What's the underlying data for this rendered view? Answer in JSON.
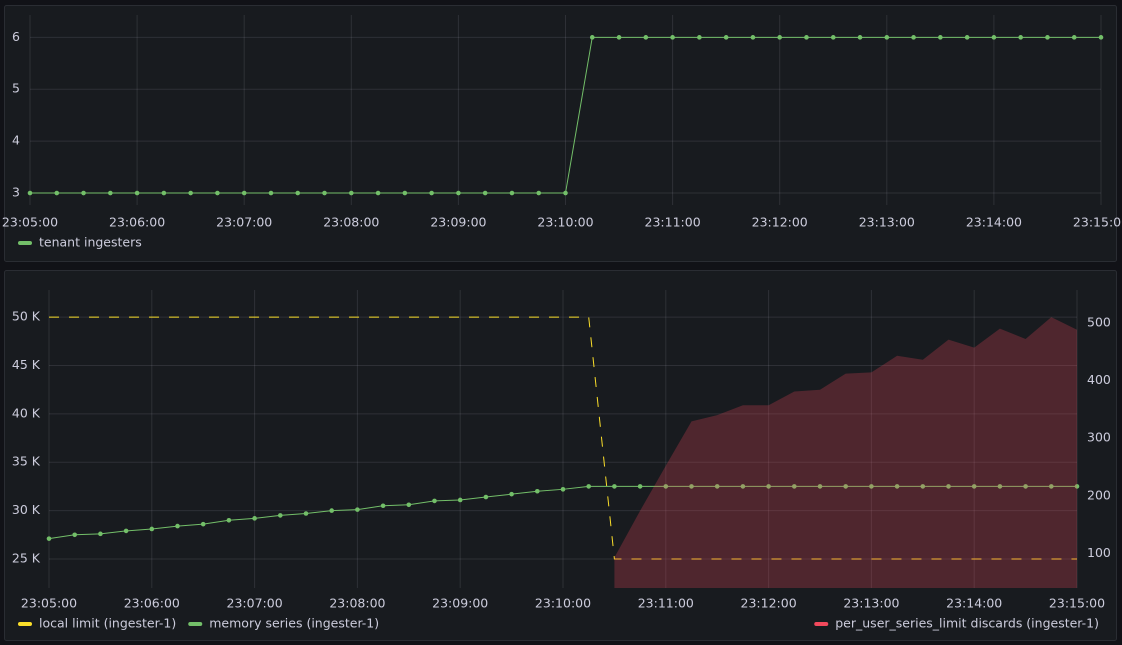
{
  "chart_data": [
    {
      "type": "line",
      "x": [
        "23:05:00",
        "23:05:15",
        "23:05:30",
        "23:05:45",
        "23:06:00",
        "23:06:15",
        "23:06:30",
        "23:06:45",
        "23:07:00",
        "23:07:15",
        "23:07:30",
        "23:07:45",
        "23:08:00",
        "23:08:15",
        "23:08:30",
        "23:08:45",
        "23:09:00",
        "23:09:15",
        "23:09:30",
        "23:09:45",
        "23:10:00",
        "23:10:15",
        "23:10:30",
        "23:10:45",
        "23:11:00",
        "23:11:15",
        "23:11:30",
        "23:11:45",
        "23:12:00",
        "23:12:15",
        "23:12:30",
        "23:12:45",
        "23:13:00",
        "23:13:15",
        "23:13:30",
        "23:13:45",
        "23:14:00",
        "23:14:15",
        "23:14:30",
        "23:14:45",
        "23:15:00"
      ],
      "series": [
        {
          "name": "tenant ingesters",
          "color": "#73bf69",
          "points": true,
          "values": [
            3,
            3,
            3,
            3,
            3,
            3,
            3,
            3,
            3,
            3,
            3,
            3,
            3,
            3,
            3,
            3,
            3,
            3,
            3,
            3,
            3,
            6,
            6,
            6,
            6,
            6,
            6,
            6,
            6,
            6,
            6,
            6,
            6,
            6,
            6,
            6,
            6,
            6,
            6,
            6,
            6
          ]
        }
      ],
      "xlim": [
        "23:05:00",
        "23:15:00"
      ],
      "xticks": [
        "23:05:00",
        "23:06:00",
        "23:07:00",
        "23:08:00",
        "23:09:00",
        "23:10:00",
        "23:11:00",
        "23:12:00",
        "23:13:00",
        "23:14:00",
        "23:15:00"
      ],
      "ylim": [
        2.77,
        6.43
      ],
      "yticks": [
        3,
        4,
        5,
        6
      ],
      "grid": true,
      "legend": "bottom"
    },
    {
      "type": "line",
      "x": [
        "23:05:00",
        "23:05:15",
        "23:05:30",
        "23:05:45",
        "23:06:00",
        "23:06:15",
        "23:06:30",
        "23:06:45",
        "23:07:00",
        "23:07:15",
        "23:07:30",
        "23:07:45",
        "23:08:00",
        "23:08:15",
        "23:08:30",
        "23:08:45",
        "23:09:00",
        "23:09:15",
        "23:09:30",
        "23:09:45",
        "23:10:00",
        "23:10:15",
        "23:10:30",
        "23:10:45",
        "23:11:00",
        "23:11:15",
        "23:11:30",
        "23:11:45",
        "23:12:00",
        "23:12:15",
        "23:12:30",
        "23:12:45",
        "23:13:00",
        "23:13:15",
        "23:13:30",
        "23:13:45",
        "23:14:00",
        "23:14:15",
        "23:14:30",
        "23:14:45",
        "23:15:00"
      ],
      "series": [
        {
          "name": "local limit (ingester-1)",
          "color": "#fade2a",
          "dashed": true,
          "values": [
            50000,
            50000,
            50000,
            50000,
            50000,
            50000,
            50000,
            50000,
            50000,
            50000,
            50000,
            50000,
            50000,
            50000,
            50000,
            50000,
            50000,
            50000,
            50000,
            50000,
            50000,
            50000,
            25000,
            25000,
            25000,
            25000,
            25000,
            25000,
            25000,
            25000,
            25000,
            25000,
            25000,
            25000,
            25000,
            25000,
            25000,
            25000,
            25000,
            25000,
            25000
          ]
        },
        {
          "name": "memory series (ingester-1)",
          "color": "#73bf69",
          "points": true,
          "values": [
            27100,
            27500,
            27600,
            27900,
            28100,
            28400,
            28600,
            29000,
            29200,
            29500,
            29700,
            30000,
            30100,
            30500,
            30600,
            31000,
            31100,
            31400,
            31700,
            32000,
            32200,
            32500,
            32500,
            32500,
            32500,
            32500,
            32500,
            32500,
            32500,
            32500,
            32500,
            32500,
            32500,
            32500,
            32500,
            32500,
            32500,
            32500,
            32500,
            32500,
            32500
          ]
        },
        {
          "name": "per_user_series_limit discards (ingester-1)",
          "color": "#f2495c",
          "axis": "y2",
          "fill": true,
          "values": [
            null,
            null,
            null,
            null,
            null,
            null,
            null,
            null,
            null,
            null,
            null,
            null,
            null,
            null,
            null,
            null,
            null,
            null,
            null,
            null,
            null,
            null,
            93,
            174,
            252,
            329,
            340,
            357,
            357,
            381,
            384,
            412,
            414,
            443,
            436,
            471,
            457,
            490,
            472,
            510,
            488
          ]
        }
      ],
      "xlim": [
        "23:05:00",
        "23:15:00"
      ],
      "xticks": [
        "23:05:00",
        "23:06:00",
        "23:07:00",
        "23:08:00",
        "23:09:00",
        "23:10:00",
        "23:11:00",
        "23:12:00",
        "23:13:00",
        "23:14:00",
        "23:15:00"
      ],
      "ylim": [
        22000,
        52800
      ],
      "yticks": [
        {
          "value": 25000,
          "label": "25 K"
        },
        {
          "value": 30000,
          "label": "30 K"
        },
        {
          "value": 35000,
          "label": "35 K"
        },
        {
          "value": 40000,
          "label": "40 K"
        },
        {
          "value": 45000,
          "label": "45 K"
        },
        {
          "value": 50000,
          "label": "50 K"
        }
      ],
      "y2lim": [
        40,
        557
      ],
      "y2ticks": [
        100,
        200,
        300,
        400,
        500
      ],
      "grid": true,
      "legend": "bottom"
    }
  ]
}
